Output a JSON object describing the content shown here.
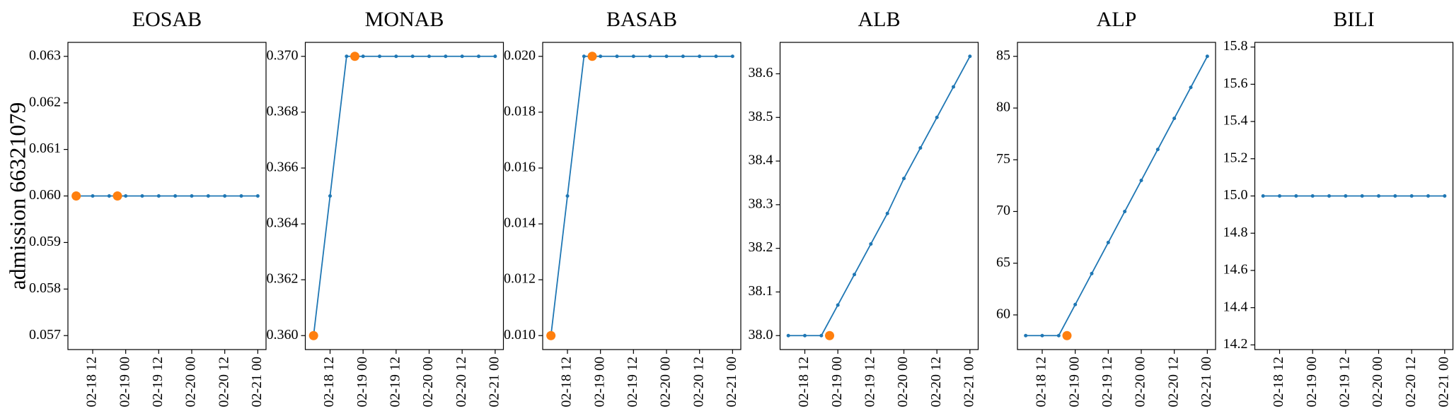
{
  "chart_data": [
    {
      "type": "line",
      "title": "EOSAB",
      "ylabel": "admission 66321079",
      "xlim": [
        "02-18 03",
        "02-21 03"
      ],
      "xticks": [
        "02-18 12",
        "02-19 00",
        "02-19 12",
        "02-20 00",
        "02-20 12",
        "02-21 00"
      ],
      "ylim": [
        0.0567,
        0.0633
      ],
      "yticks": [
        0.057,
        0.058,
        0.059,
        {
          "value": 0.06,
          "label": "0.060"
        },
        0.061,
        0.062,
        0.063
      ],
      "series": [
        {
          "color": "#1f77b4",
          "line": true,
          "marker_size": 2.5,
          "x": [
            "02-18 06",
            "02-18 12",
            "02-18 18",
            "02-19 00",
            "02-19 06",
            "02-19 12",
            "02-19 18",
            "02-20 00",
            "02-20 06",
            "02-20 12",
            "02-20 18",
            "02-21 00"
          ],
          "values": [
            0.06,
            0.06,
            0.06,
            0.06,
            0.06,
            0.06,
            0.06,
            0.06,
            0.06,
            0.06,
            0.06,
            0.06
          ]
        },
        {
          "color": "#ff7f0e",
          "line": false,
          "marker_size": 6.5,
          "x": [
            "02-18 06",
            "02-18 21"
          ],
          "values": [
            0.06,
            0.06
          ]
        }
      ]
    },
    {
      "type": "line",
      "title": "MONAB",
      "xlim": [
        "02-18 03",
        "02-21 03"
      ],
      "xticks": [
        "02-18 12",
        "02-19 00",
        "02-19 12",
        "02-20 00",
        "02-20 12",
        "02-21 00"
      ],
      "ylim": [
        0.3595,
        0.3705
      ],
      "yticks": [
        {
          "value": 0.36,
          "label": "0.360"
        },
        0.362,
        0.364,
        0.366,
        0.368,
        {
          "value": 0.37,
          "label": "0.370"
        }
      ],
      "series": [
        {
          "color": "#1f77b4",
          "line": true,
          "marker_size": 2.5,
          "x": [
            "02-18 06",
            "02-18 12",
            "02-18 18",
            "02-19 00",
            "02-19 06",
            "02-19 12",
            "02-19 18",
            "02-20 00",
            "02-20 06",
            "02-20 12",
            "02-20 18",
            "02-21 00"
          ],
          "values": [
            0.36,
            0.365,
            0.37,
            0.37,
            0.37,
            0.37,
            0.37,
            0.37,
            0.37,
            0.37,
            0.37,
            0.37
          ]
        },
        {
          "color": "#ff7f0e",
          "line": false,
          "marker_size": 6.5,
          "x": [
            "02-18 06",
            "02-18 21"
          ],
          "values": [
            0.36,
            0.37
          ]
        }
      ]
    },
    {
      "type": "line",
      "title": "BASAB",
      "xlim": [
        "02-18 03",
        "02-21 03"
      ],
      "xticks": [
        "02-18 12",
        "02-19 00",
        "02-19 12",
        "02-20 00",
        "02-20 12",
        "02-21 00"
      ],
      "ylim": [
        0.0095,
        0.0205
      ],
      "yticks": [
        {
          "value": 0.01,
          "label": "0.010"
        },
        0.012,
        0.014,
        0.016,
        0.018,
        {
          "value": 0.02,
          "label": "0.020"
        }
      ],
      "series": [
        {
          "color": "#1f77b4",
          "line": true,
          "marker_size": 2.5,
          "x": [
            "02-18 06",
            "02-18 12",
            "02-18 18",
            "02-19 00",
            "02-19 06",
            "02-19 12",
            "02-19 18",
            "02-20 00",
            "02-20 06",
            "02-20 12",
            "02-20 18",
            "02-21 00"
          ],
          "values": [
            0.01,
            0.015,
            0.02,
            0.02,
            0.02,
            0.02,
            0.02,
            0.02,
            0.02,
            0.02,
            0.02,
            0.02
          ]
        },
        {
          "color": "#ff7f0e",
          "line": false,
          "marker_size": 6.5,
          "x": [
            "02-18 06",
            "02-18 21"
          ],
          "values": [
            0.01,
            0.02
          ]
        }
      ]
    },
    {
      "type": "line",
      "title": "ALB",
      "xlim": [
        "02-18 03",
        "02-21 03"
      ],
      "xticks": [
        "02-18 12",
        "02-19 00",
        "02-19 12",
        "02-20 00",
        "02-20 12",
        "02-21 00"
      ],
      "ylim": [
        37.968,
        38.672
      ],
      "yticks": [
        {
          "value": 38,
          "label": "38.0"
        },
        38.1,
        38.2,
        38.3,
        38.4,
        38.5,
        38.6
      ],
      "series": [
        {
          "color": "#1f77b4",
          "line": true,
          "marker_size": 2.5,
          "x": [
            "02-18 06",
            "02-18 12",
            "02-18 18",
            "02-19 00",
            "02-19 06",
            "02-19 12",
            "02-19 18",
            "02-20 00",
            "02-20 06",
            "02-20 12",
            "02-20 18",
            "02-21 00"
          ],
          "values": [
            38.0,
            38.0,
            38.0,
            38.07,
            38.14,
            38.21,
            38.28,
            38.36,
            38.43,
            38.5,
            38.57,
            38.64
          ]
        },
        {
          "color": "#ff7f0e",
          "line": false,
          "marker_size": 6.5,
          "x": [
            "02-18 21"
          ],
          "values": [
            38.0
          ]
        }
      ]
    },
    {
      "type": "line",
      "title": "ALP",
      "xlim": [
        "02-18 03",
        "02-21 03"
      ],
      "xticks": [
        "02-18 12",
        "02-19 00",
        "02-19 12",
        "02-20 00",
        "02-20 12",
        "02-21 00"
      ],
      "ylim": [
        56.65,
        86.35
      ],
      "yticks": [
        60,
        65,
        70,
        75,
        80,
        85
      ],
      "series": [
        {
          "color": "#1f77b4",
          "line": true,
          "marker_size": 2.5,
          "x": [
            "02-18 06",
            "02-18 12",
            "02-18 18",
            "02-19 00",
            "02-19 06",
            "02-19 12",
            "02-19 18",
            "02-20 00",
            "02-20 06",
            "02-20 12",
            "02-20 18",
            "02-21 00"
          ],
          "values": [
            58,
            58,
            58,
            61,
            64,
            67,
            70,
            73,
            76,
            79,
            82,
            85
          ]
        },
        {
          "color": "#ff7f0e",
          "line": false,
          "marker_size": 6.5,
          "x": [
            "02-18 21"
          ],
          "values": [
            58
          ]
        }
      ]
    },
    {
      "type": "line",
      "title": "BILI",
      "xlim": [
        "02-18 03",
        "02-21 03"
      ],
      "xticks": [
        "02-18 12",
        "02-19 00",
        "02-19 12",
        "02-20 00",
        "02-20 12",
        "02-21 00"
      ],
      "ylim": [
        14.175,
        15.825
      ],
      "yticks": [
        14.2,
        14.4,
        14.6,
        14.8,
        {
          "value": 15,
          "label": "15.0"
        },
        15.2,
        15.4,
        15.6,
        15.8
      ],
      "series": [
        {
          "color": "#1f77b4",
          "line": true,
          "marker_size": 2.5,
          "x": [
            "02-18 06",
            "02-18 12",
            "02-18 18",
            "02-19 00",
            "02-19 06",
            "02-19 12",
            "02-19 18",
            "02-20 00",
            "02-20 06",
            "02-20 12",
            "02-20 18",
            "02-21 00"
          ],
          "values": [
            15,
            15,
            15,
            15,
            15,
            15,
            15,
            15,
            15,
            15,
            15,
            15
          ]
        }
      ]
    }
  ]
}
